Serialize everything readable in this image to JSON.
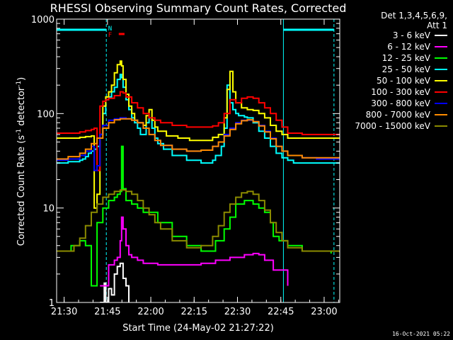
{
  "chart_data": {
    "type": "line",
    "title": "RHESSI Observing Summary Count Rates, Corrected",
    "xlabel": "Start Time (24-May-02 21:27:22)",
    "ylabel": "Corrected Count Rate (s",
    "ylabel_sup1": "-1",
    "ylabel_mid": " detector",
    "ylabel_sup2": "-1",
    "ylabel_end": ")",
    "yscale": "log",
    "ylim": [
      1,
      1000
    ],
    "xlim_minutes": [
      0,
      98
    ],
    "x_ticks": [
      {
        "m": 2.6,
        "label": "21:30"
      },
      {
        "m": 17.6,
        "label": "21:45"
      },
      {
        "m": 32.6,
        "label": "22:00"
      },
      {
        "m": 47.6,
        "label": "22:15"
      },
      {
        "m": 62.6,
        "label": "22:30"
      },
      {
        "m": 77.6,
        "label": "22:45"
      },
      {
        "m": 92.6,
        "label": "23:00"
      }
    ],
    "y_ticks": [
      {
        "v": 1,
        "label": "1"
      },
      {
        "v": 10,
        "label": "10"
      },
      {
        "v": 100,
        "label": "100"
      },
      {
        "v": 1000,
        "label": "1000"
      }
    ],
    "legend_header": [
      "Det 1,3,4,5,6,9,",
      "Att 1"
    ],
    "series": [
      {
        "name": "3 - 6 keV",
        "color": "#ffffff",
        "x": [
          15,
          16,
          16.5,
          17,
          18,
          19,
          20,
          21,
          22,
          23,
          24,
          25
        ],
        "y": [
          1,
          1,
          1.6,
          1,
          1.4,
          1.2,
          2,
          2.4,
          2.6,
          1.8,
          1.5,
          1
        ]
      },
      {
        "name": "6 - 12 keV",
        "color": "#ff00ff",
        "x": [
          15,
          18,
          20,
          21,
          22,
          22.5,
          23,
          24,
          25,
          26,
          28,
          30,
          35,
          40,
          45,
          50,
          55,
          60,
          65,
          68,
          70,
          72,
          75,
          80
        ],
        "y": [
          1.5,
          2.5,
          2.8,
          3,
          4.5,
          8,
          6,
          4,
          3.2,
          3,
          2.8,
          2.6,
          2.5,
          2.5,
          2.5,
          2.6,
          2.8,
          3,
          3.2,
          3.3,
          3.2,
          2.8,
          2.2,
          1.5
        ]
      },
      {
        "name": "12 - 25 keV",
        "color": "#00ff00",
        "x": [
          0,
          5,
          8,
          10,
          12,
          14,
          16,
          18,
          20,
          21,
          22,
          22.5,
          23,
          24,
          26,
          28,
          30,
          35,
          40,
          45,
          50,
          55,
          58,
          60,
          62,
          65,
          68,
          70,
          72,
          74,
          75,
          77,
          80,
          85,
          90,
          95
        ],
        "y": [
          3.5,
          4,
          4.5,
          4,
          1.5,
          7,
          10,
          12,
          13,
          14,
          15,
          45,
          16,
          12,
          11,
          10,
          9,
          7,
          5,
          4,
          3.5,
          4.5,
          6,
          8,
          11,
          12,
          11,
          10,
          9,
          7,
          5,
          4.5,
          4,
          3.5,
          3.5,
          3.3
        ]
      },
      {
        "name": "25 - 50 keV",
        "color": "#00ffff",
        "x": [
          0,
          2,
          4,
          6,
          8,
          9,
          10,
          11,
          12,
          13,
          14,
          15,
          16,
          17,
          18,
          19,
          20,
          21,
          22,
          22.5,
          23,
          24,
          25,
          26,
          27,
          28,
          29,
          30,
          31,
          32,
          33,
          34,
          35,
          37,
          40,
          45,
          50,
          52,
          54,
          55,
          57,
          58,
          59,
          60,
          61,
          62,
          63,
          64,
          65,
          66,
          68,
          70,
          72,
          74,
          76,
          78,
          80,
          82,
          85,
          90,
          95,
          98
        ],
        "y": [
          30,
          30,
          31,
          31,
          32,
          33,
          35,
          38,
          40,
          42,
          45,
          60,
          100,
          140,
          150,
          170,
          190,
          230,
          260,
          240,
          190,
          140,
          110,
          90,
          80,
          70,
          60,
          60,
          80,
          90,
          70,
          55,
          48,
          42,
          36,
          32,
          30,
          30,
          32,
          36,
          45,
          70,
          200,
          130,
          110,
          100,
          95,
          95,
          92,
          90,
          80,
          65,
          55,
          45,
          38,
          34,
          32,
          30,
          30,
          30,
          30,
          30
        ]
      },
      {
        "name": "50 - 100 keV",
        "color": "#ffff00",
        "x": [
          0,
          4,
          8,
          10,
          12,
          13,
          14,
          15,
          16,
          17,
          18,
          19,
          20,
          21,
          22,
          22.5,
          23,
          24,
          25,
          26,
          27,
          28,
          30,
          31,
          32,
          33,
          34,
          35,
          38,
          42,
          46,
          50,
          54,
          56,
          58,
          59,
          60,
          61,
          62,
          64,
          66,
          68,
          70,
          72,
          74,
          76,
          78,
          80,
          85,
          90,
          95,
          98
        ],
        "y": [
          55,
          55,
          56,
          57,
          58,
          10,
          14,
          60,
          120,
          150,
          170,
          200,
          270,
          330,
          360,
          320,
          230,
          160,
          120,
          100,
          85,
          80,
          75,
          95,
          110,
          85,
          72,
          65,
          58,
          55,
          52,
          52,
          56,
          60,
          90,
          180,
          280,
          170,
          130,
          115,
          110,
          108,
          100,
          90,
          75,
          65,
          60,
          55,
          55,
          55,
          55,
          55
        ]
      },
      {
        "name": "100 - 300 keV",
        "color": "#ff0000",
        "x": [
          0,
          4,
          8,
          10,
          12,
          13,
          14,
          15,
          16,
          17,
          18,
          20,
          22,
          23,
          24,
          26,
          28,
          30,
          32,
          34,
          36,
          40,
          45,
          50,
          54,
          56,
          58,
          60,
          62,
          64,
          66,
          68,
          70,
          72,
          74,
          76,
          78,
          80,
          85,
          90,
          95,
          98
        ],
        "y": [
          62,
          62,
          64,
          66,
          68,
          70,
          25,
          120,
          135,
          140,
          145,
          155,
          170,
          165,
          150,
          130,
          115,
          100,
          90,
          85,
          80,
          75,
          72,
          72,
          74,
          80,
          100,
          140,
          130,
          145,
          150,
          145,
          130,
          115,
          100,
          85,
          72,
          62,
          60,
          60,
          60,
          60
        ]
      },
      {
        "name": "300 - 800 keV",
        "color": "#0000ff",
        "x": [
          0,
          4,
          8,
          10,
          12,
          13,
          14,
          15,
          16,
          18,
          20,
          22,
          24,
          26,
          28,
          30,
          32,
          34,
          36,
          40,
          45,
          50,
          54,
          56,
          58,
          60,
          62,
          64,
          66,
          68,
          70,
          72,
          74,
          76,
          78,
          80,
          85,
          90,
          95,
          98
        ],
        "y": [
          32,
          33,
          36,
          40,
          45,
          25,
          28,
          60,
          75,
          85,
          88,
          90,
          88,
          85,
          80,
          70,
          60,
          52,
          46,
          42,
          40,
          41,
          45,
          50,
          60,
          70,
          80,
          85,
          85,
          82,
          75,
          65,
          55,
          45,
          40,
          36,
          34,
          33,
          33,
          33
        ]
      },
      {
        "name": "800 - 7000 keV",
        "color": "#ff8c00",
        "x": [
          0,
          4,
          8,
          10,
          12,
          14,
          16,
          18,
          20,
          22,
          24,
          26,
          28,
          30,
          32,
          34,
          36,
          40,
          45,
          50,
          54,
          56,
          58,
          60,
          62,
          64,
          66,
          68,
          70,
          72,
          74,
          76,
          78,
          80,
          85,
          90,
          95,
          98
        ],
        "y": [
          33,
          35,
          38,
          42,
          48,
          55,
          70,
          80,
          86,
          88,
          88,
          85,
          80,
          70,
          60,
          52,
          46,
          42,
          40,
          41,
          45,
          50,
          58,
          68,
          78,
          84,
          86,
          82,
          74,
          64,
          54,
          45,
          40,
          36,
          34,
          34,
          34,
          34
        ]
      },
      {
        "name": "7000 - 15000 keV",
        "color": "#8b8b00",
        "x": [
          0,
          4,
          6,
          8,
          10,
          12,
          14,
          16,
          18,
          20,
          22,
          24,
          26,
          28,
          30,
          32,
          34,
          36,
          40,
          45,
          50,
          54,
          56,
          58,
          60,
          62,
          64,
          66,
          68,
          70,
          72,
          74,
          76,
          78,
          80,
          85,
          90,
          95,
          98
        ],
        "y": [
          3.5,
          3.5,
          4,
          4.8,
          6.5,
          9,
          11,
          13,
          14,
          15,
          15.5,
          15,
          14,
          12,
          10,
          8.5,
          7,
          6,
          4.5,
          3.8,
          4,
          5,
          6.5,
          9,
          11,
          13,
          14.5,
          15,
          14,
          12,
          9.5,
          7,
          5.5,
          4.5,
          3.8,
          3.5,
          3.5,
          3.5,
          3.4
        ]
      }
    ],
    "attenuator_periods_minutes": [
      [
        0,
        17.2
      ],
      [
        78.5,
        96
      ]
    ],
    "flag_letters": [
      {
        "text": "N",
        "color": "#00ffff"
      },
      {
        "text": "F",
        "color": "#ff0000"
      }
    ],
    "footer_date": "16-Oct-2021 05:22"
  }
}
